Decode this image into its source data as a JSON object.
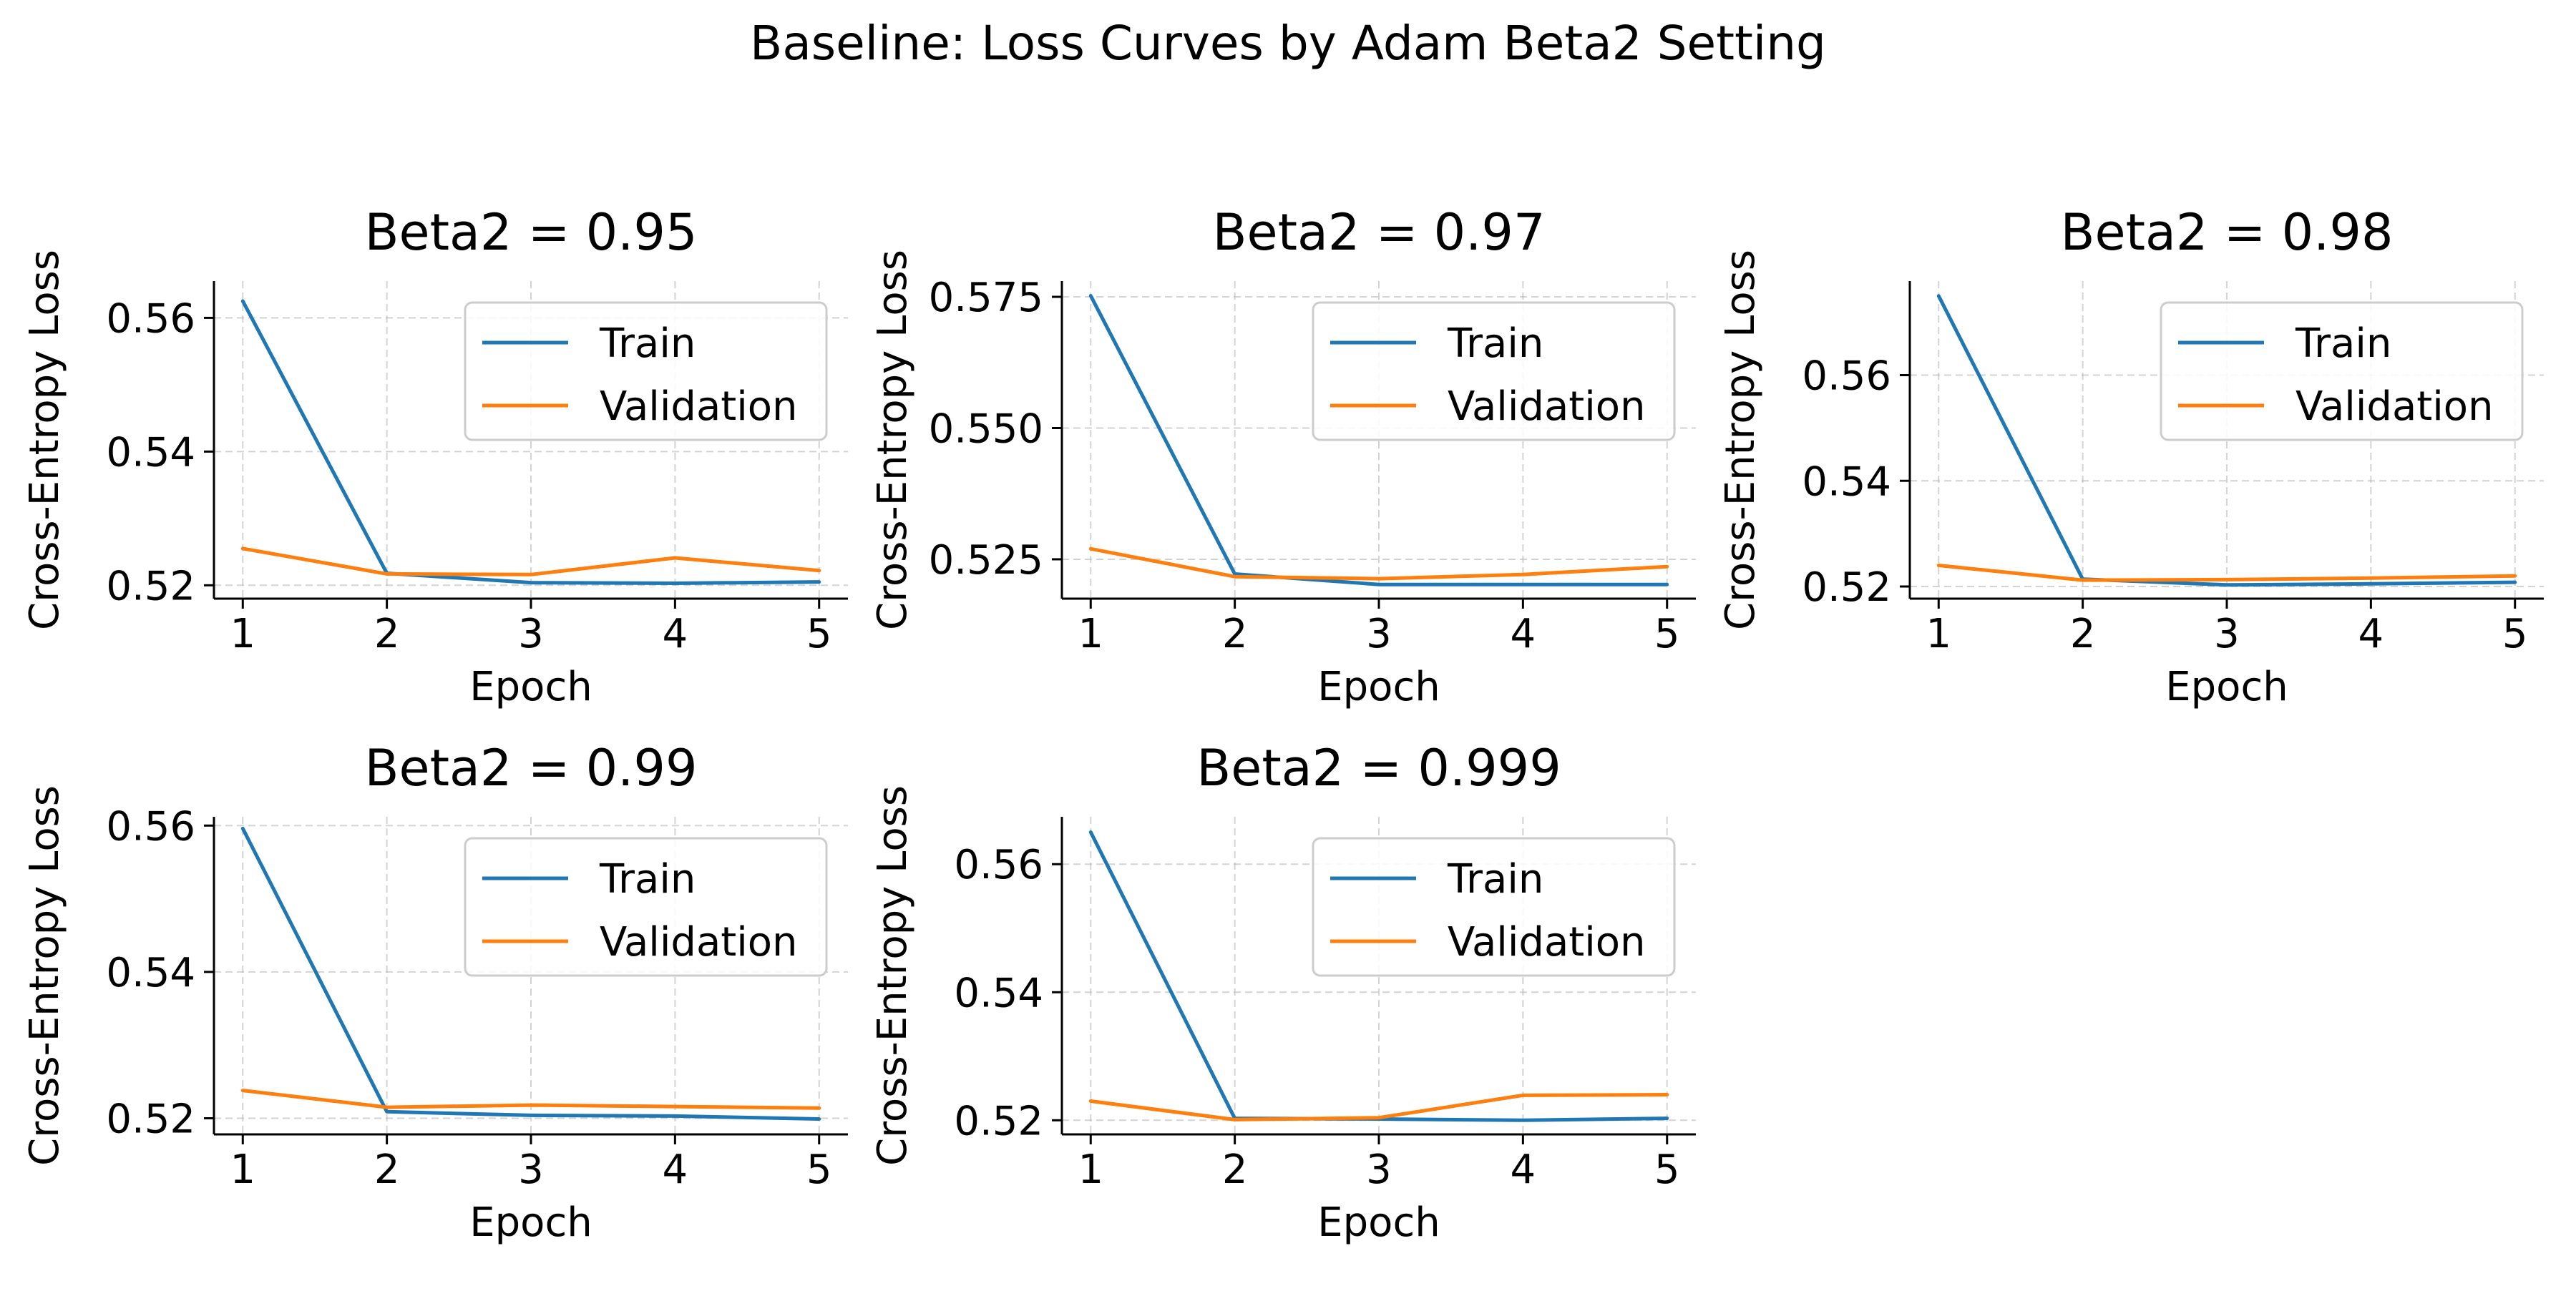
{
  "figure": {
    "title": "Baseline: Loss Curves by Adam Beta2 Setting"
  },
  "colors": {
    "train": "#1f77b4",
    "validation": "#ff7f0e",
    "grid": "#b0b0b0",
    "axis": "#000000"
  },
  "chart_data": [
    {
      "type": "line",
      "title": "Beta2 = 0.95",
      "xlabel": "Epoch",
      "ylabel": "Cross-Entropy Loss",
      "x": [
        1,
        2,
        3,
        4,
        5
      ],
      "xticks": [
        1,
        2,
        3,
        4,
        5
      ],
      "yticks": [
        0.52,
        0.54,
        0.56
      ],
      "ytick_labels": [
        "0.52",
        "0.54",
        "0.56"
      ],
      "ylim": [
        0.518,
        0.5655
      ],
      "grid": true,
      "legend": "upper right",
      "series": [
        {
          "name": "Train",
          "values": [
            0.5625,
            0.5218,
            0.5204,
            0.5203,
            0.5205
          ]
        },
        {
          "name": "Validation",
          "values": [
            0.5255,
            0.5217,
            0.5216,
            0.5241,
            0.5222
          ]
        }
      ]
    },
    {
      "type": "line",
      "title": "Beta2 = 0.97",
      "xlabel": "Epoch",
      "ylabel": "Cross-Entropy Loss",
      "x": [
        1,
        2,
        3,
        4,
        5
      ],
      "xticks": [
        1,
        2,
        3,
        4,
        5
      ],
      "yticks": [
        0.525,
        0.55,
        0.575
      ],
      "ytick_labels": [
        "0.525",
        "0.550",
        "0.575"
      ],
      "ylim": [
        0.5175,
        0.578
      ],
      "grid": true,
      "legend": "upper right",
      "series": [
        {
          "name": "Train",
          "values": [
            0.5752,
            0.5222,
            0.5202,
            0.5202,
            0.5202
          ]
        },
        {
          "name": "Validation",
          "values": [
            0.527,
            0.5217,
            0.5213,
            0.5221,
            0.5236
          ]
        }
      ]
    },
    {
      "type": "line",
      "title": "Beta2 = 0.98",
      "xlabel": "Epoch",
      "ylabel": "Cross-Entropy Loss",
      "x": [
        1,
        2,
        3,
        4,
        5
      ],
      "xticks": [
        1,
        2,
        3,
        4,
        5
      ],
      "yticks": [
        0.52,
        0.54,
        0.56
      ],
      "ytick_labels": [
        "0.52",
        "0.54",
        "0.56"
      ],
      "ylim": [
        0.5177,
        0.5778
      ],
      "grid": true,
      "legend": "upper right",
      "series": [
        {
          "name": "Train",
          "values": [
            0.575,
            0.5214,
            0.5203,
            0.5205,
            0.5208
          ]
        },
        {
          "name": "Validation",
          "values": [
            0.524,
            0.5212,
            0.5213,
            0.5216,
            0.522
          ]
        }
      ]
    },
    {
      "type": "line",
      "title": "Beta2 = 0.99",
      "xlabel": "Epoch",
      "ylabel": "Cross-Entropy Loss",
      "x": [
        1,
        2,
        3,
        4,
        5
      ],
      "xticks": [
        1,
        2,
        3,
        4,
        5
      ],
      "yticks": [
        0.52,
        0.54,
        0.56
      ],
      "ytick_labels": [
        "0.52",
        "0.54",
        "0.56"
      ],
      "ylim": [
        0.5178,
        0.5612
      ],
      "grid": true,
      "legend": "upper right",
      "series": [
        {
          "name": "Train",
          "values": [
            0.5596,
            0.5209,
            0.5204,
            0.5203,
            0.5199
          ]
        },
        {
          "name": "Validation",
          "values": [
            0.5238,
            0.5215,
            0.5218,
            0.5216,
            0.5214
          ]
        }
      ]
    },
    {
      "type": "line",
      "title": "Beta2 = 0.999",
      "xlabel": "Epoch",
      "ylabel": "Cross-Entropy Loss",
      "x": [
        1,
        2,
        3,
        4,
        5
      ],
      "xticks": [
        1,
        2,
        3,
        4,
        5
      ],
      "yticks": [
        0.52,
        0.54,
        0.56
      ],
      "ytick_labels": [
        "0.52",
        "0.54",
        "0.56"
      ],
      "ylim": [
        0.5178,
        0.5674
      ],
      "grid": true,
      "legend": "upper right",
      "series": [
        {
          "name": "Train",
          "values": [
            0.565,
            0.5203,
            0.5202,
            0.52,
            0.5203
          ]
        },
        {
          "name": "Validation",
          "values": [
            0.523,
            0.5201,
            0.5204,
            0.5239,
            0.524
          ]
        }
      ]
    }
  ]
}
